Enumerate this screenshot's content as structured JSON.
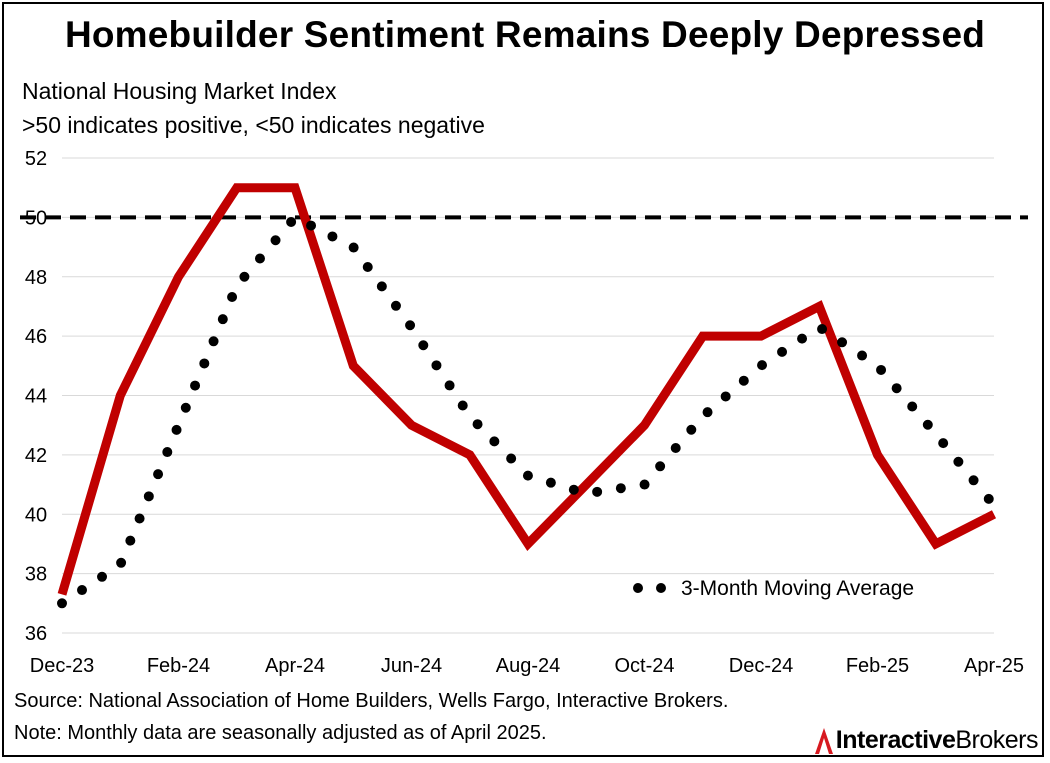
{
  "title": "Homebuilder Sentiment Remains Deeply Depressed",
  "subtitle_lines": [
    "National Housing Market Index",
    ">50 indicates positive, <50 indicates negative"
  ],
  "footnotes": {
    "source": "Source: National Association of Home Builders, Wells Fargo, Interactive Brokers.",
    "note": "Note: Monthly data are seasonally adjusted as of April 2025."
  },
  "logo": {
    "part1": "Interactive",
    "part2": "Brokers"
  },
  "colors": {
    "index_line": "#C00000",
    "moving_average": "#000000",
    "threshold": "#000000",
    "grid": "#d9d9d9",
    "logo_mark": "#d71920"
  },
  "chart_data": {
    "type": "line",
    "title": "Homebuilder Sentiment Remains Deeply Depressed",
    "xlabel": "",
    "ylabel": "National Housing Market Index",
    "ylim": [
      36,
      52
    ],
    "yticks": [
      36,
      38,
      40,
      42,
      44,
      46,
      48,
      50,
      52
    ],
    "x": [
      "Dec-23",
      "Jan-24",
      "Feb-24",
      "Mar-24",
      "Apr-24",
      "May-24",
      "Jun-24",
      "Jul-24",
      "Aug-24",
      "Sep-24",
      "Oct-24",
      "Nov-24",
      "Dec-24",
      "Jan-25",
      "Feb-25",
      "Mar-25",
      "Apr-25"
    ],
    "xtick_labels": [
      "Dec-23",
      "Feb-24",
      "Apr-24",
      "Jun-24",
      "Aug-24",
      "Oct-24",
      "Dec-24",
      "Feb-25",
      "Apr-25"
    ],
    "series": [
      {
        "name": "Housing Market Index",
        "style": "solid",
        "values": [
          37.3,
          44,
          48,
          51,
          51,
          45,
          43,
          42,
          39,
          41,
          43,
          46,
          46,
          47,
          42,
          39,
          40
        ]
      },
      {
        "name": "3-Month Moving Average",
        "style": "dotted",
        "values": [
          37,
          38.3,
          43,
          47.7,
          50,
          49,
          46.3,
          43.3,
          41.3,
          40.7,
          41,
          43.3,
          45,
          46.3,
          45,
          42.7,
          40.3
        ]
      }
    ],
    "reference_line": {
      "value": 50,
      "style": "dashed"
    },
    "legend": {
      "entries": [
        "3-Month Moving Average"
      ],
      "position": "lower-right"
    },
    "grid": true
  }
}
